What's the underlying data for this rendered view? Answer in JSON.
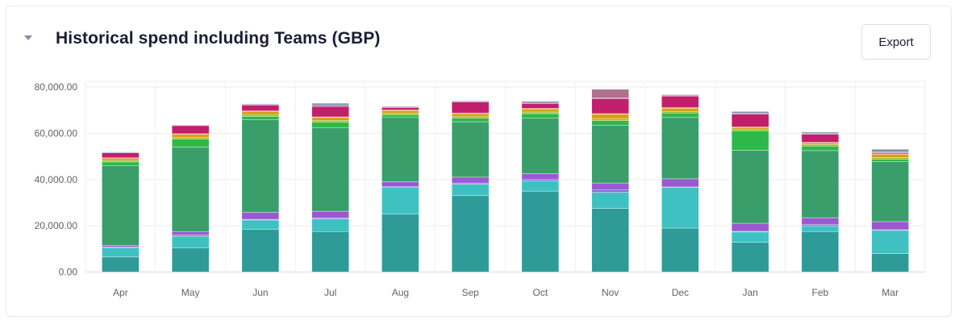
{
  "header": {
    "title": "Historical spend including Teams (GBP)",
    "collapse_icon": "caret-down-icon",
    "export_label": "Export"
  },
  "chart_data": {
    "type": "bar",
    "stacked": true,
    "title": "Historical spend including Teams (GBP)",
    "xlabel": "",
    "ylabel": "",
    "ylim": [
      0,
      80000
    ],
    "yticks": [
      0,
      20000,
      40000,
      60000,
      80000
    ],
    "ytick_labels": [
      "0.00",
      "20,000.00",
      "40,000.00",
      "60,000.00",
      "80,000.00"
    ],
    "grid": true,
    "legend": "none",
    "categories": [
      "Apr",
      "May",
      "Jun",
      "Jul",
      "Aug",
      "Sep",
      "Oct",
      "Nov",
      "Dec",
      "Jan",
      "Feb",
      "Mar"
    ],
    "series": [
      {
        "color": "#2e9b98",
        "values": [
          6500,
          10500,
          18500,
          17500,
          25000,
          33000,
          35000,
          27500,
          19000,
          12800,
          17500,
          8000
        ]
      },
      {
        "color": "#3fc1c2",
        "values": [
          4000,
          5000,
          4000,
          5500,
          11500,
          5000,
          4500,
          7000,
          17500,
          4500,
          2500,
          10000
        ]
      },
      {
        "color": "#7b6fd6",
        "values": [
          300,
          500,
          300,
          300,
          500,
          500,
          500,
          1000,
          300,
          300,
          500,
          300
        ]
      },
      {
        "color": "#9b59d0",
        "values": [
          800,
          1500,
          3000,
          3000,
          2000,
          2500,
          2500,
          3000,
          3500,
          3500,
          3000,
          3500
        ]
      },
      {
        "color": "#3a9e6b",
        "values": [
          34500,
          36500,
          40000,
          36000,
          28000,
          24000,
          24000,
          25000,
          26500,
          31500,
          29000,
          26000
        ]
      },
      {
        "color": "#2fb84a",
        "values": [
          1500,
          3500,
          1500,
          2500,
          1000,
          1500,
          2000,
          2000,
          2000,
          8500,
          2000,
          1000
        ]
      },
      {
        "color": "#98b82a",
        "values": [
          700,
          700,
          800,
          700,
          700,
          700,
          700,
          700,
          700,
          700,
          600,
          700
        ]
      },
      {
        "color": "#d4a20d",
        "values": [
          800,
          1300,
          1300,
          1300,
          1100,
          1300,
          1300,
          2000,
          1300,
          700,
          700,
          1300
        ]
      },
      {
        "color": "#e06a1b",
        "values": [
          300,
          300,
          300,
          300,
          300,
          300,
          300,
          300,
          300,
          300,
          300,
          300
        ]
      },
      {
        "color": "#c21e6b",
        "values": [
          2100,
          3500,
          2500,
          4500,
          1000,
          4700,
          2000,
          6500,
          5000,
          5500,
          3500,
          500
        ]
      },
      {
        "color": "#8a6fa8",
        "values": [
          300,
          300,
          300,
          600,
          300,
          300,
          600,
          300,
          300,
          300,
          400,
          300
        ]
      },
      {
        "color": "#b0708f",
        "values": [
          0,
          0,
          0,
          0,
          0,
          0,
          0,
          3700,
          0,
          0,
          0,
          0
        ]
      },
      {
        "color": "#7d8fa8",
        "values": [
          200,
          100,
          300,
          800,
          300,
          300,
          500,
          0,
          300,
          800,
          500,
          1200
        ]
      }
    ]
  }
}
